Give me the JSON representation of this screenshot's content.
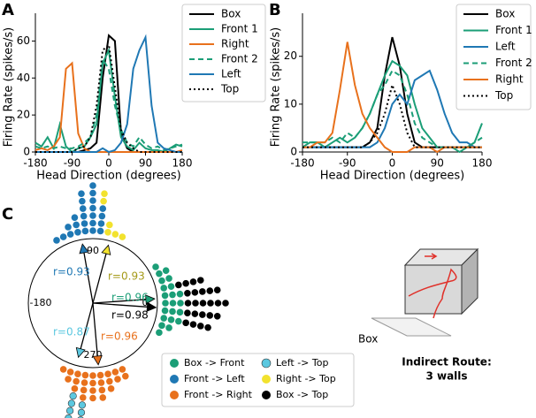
{
  "chart_data": [
    {
      "type": "line",
      "panel": "A",
      "xlabel": "Head Direction (degrees)",
      "ylabel": "Firing Rate (spikes/s)",
      "x": [
        -180,
        -165,
        -150,
        -135,
        -120,
        -105,
        -90,
        -75,
        -60,
        -45,
        -30,
        -15,
        0,
        15,
        30,
        45,
        60,
        75,
        90,
        105,
        120,
        135,
        150,
        165,
        180
      ],
      "xlim": [
        -180,
        180
      ],
      "xticks": [
        -180,
        -90,
        0,
        90,
        180
      ],
      "ylim": [
        0,
        75
      ],
      "yticks": [
        0,
        20,
        40,
        60
      ],
      "legend": "upper right",
      "series": [
        {
          "name": "Box",
          "color": "#000000",
          "dash": "solid",
          "values": [
            0,
            0,
            0,
            0,
            0,
            0,
            0,
            0,
            1,
            2,
            5,
            40,
            63,
            60,
            10,
            2,
            0,
            0,
            0,
            0,
            0,
            0,
            0,
            0,
            0
          ]
        },
        {
          "name": "Front 1",
          "color": "#1b9e77",
          "dash": "solid",
          "values": [
            5,
            3,
            8,
            2,
            15,
            3,
            0,
            2,
            3,
            8,
            15,
            48,
            55,
            30,
            8,
            3,
            1,
            5,
            2,
            1,
            1,
            0,
            2,
            4,
            3
          ]
        },
        {
          "name": "Right",
          "color": "#e8711c",
          "dash": "solid",
          "values": [
            1,
            2,
            1,
            3,
            8,
            45,
            48,
            10,
            2,
            0,
            0,
            0,
            0,
            0,
            0,
            0,
            0,
            0,
            0,
            0,
            0,
            0,
            0,
            0,
            1
          ]
        },
        {
          "name": "Front 2",
          "color": "#1b9e77",
          "dash": "dashed",
          "values": [
            3,
            2,
            3,
            2,
            3,
            2,
            2,
            3,
            5,
            8,
            20,
            50,
            45,
            25,
            12,
            5,
            3,
            8,
            4,
            2,
            3,
            1,
            2,
            3,
            4
          ]
        },
        {
          "name": "Left",
          "color": "#1f78b4",
          "dash": "solid",
          "values": [
            0,
            0,
            0,
            0,
            0,
            0,
            0,
            0,
            0,
            0,
            0,
            2,
            0,
            1,
            5,
            15,
            45,
            55,
            62,
            25,
            5,
            2,
            1,
            0,
            0
          ]
        },
        {
          "name": "Top",
          "color": "#000000",
          "dash": "dotted",
          "values": [
            0,
            0,
            0,
            0,
            0,
            0,
            0,
            2,
            3,
            8,
            25,
            55,
            58,
            35,
            12,
            5,
            2,
            0,
            0,
            0,
            0,
            0,
            0,
            0,
            0
          ]
        }
      ]
    },
    {
      "type": "line",
      "panel": "B",
      "xlabel": "Head Direction (degrees)",
      "ylabel": "Firing Rate (spikes/s)",
      "x": [
        -180,
        -165,
        -150,
        -135,
        -120,
        -105,
        -90,
        -75,
        -60,
        -45,
        -30,
        -15,
        0,
        15,
        30,
        45,
        60,
        75,
        90,
        105,
        120,
        135,
        150,
        165,
        180
      ],
      "xlim": [
        -180,
        180
      ],
      "xticks": [
        -180,
        -90,
        0,
        90,
        180
      ],
      "ylim": [
        0,
        29
      ],
      "yticks": [
        0,
        10,
        20
      ],
      "legend": "upper right",
      "series": [
        {
          "name": "Box",
          "color": "#000000",
          "dash": "solid",
          "values": [
            1,
            1,
            1,
            1,
            1,
            1,
            1,
            1,
            1,
            2,
            5,
            16,
            24,
            18,
            8,
            2,
            1,
            1,
            1,
            1,
            1,
            1,
            1,
            1,
            1
          ]
        },
        {
          "name": "Front 1",
          "color": "#1b9e77",
          "dash": "solid",
          "values": [
            1,
            2,
            2,
            1,
            2,
            3,
            2,
            3,
            5,
            8,
            12,
            16,
            19,
            18,
            16,
            10,
            5,
            3,
            1,
            1,
            1,
            0,
            1,
            2,
            6
          ]
        },
        {
          "name": "Left",
          "color": "#1f78b4",
          "dash": "solid",
          "values": [
            1,
            1,
            1,
            1,
            1,
            1,
            1,
            1,
            1,
            1,
            2,
            5,
            10,
            12,
            10,
            15,
            16,
            17,
            13,
            8,
            4,
            2,
            2,
            1,
            1
          ]
        },
        {
          "name": "Front 2",
          "color": "#1b9e77",
          "dash": "dashed",
          "values": [
            2,
            2,
            2,
            2,
            3,
            2,
            4,
            3,
            5,
            8,
            12,
            14,
            17,
            16,
            12,
            6,
            3,
            2,
            1,
            1,
            1,
            1,
            1,
            2,
            3
          ]
        },
        {
          "name": "Right",
          "color": "#e8711c",
          "dash": "solid",
          "values": [
            1,
            1,
            2,
            2,
            4,
            13,
            23,
            14,
            8,
            5,
            3,
            1,
            0,
            0,
            0,
            1,
            1,
            1,
            0,
            1,
            1,
            1,
            1,
            1,
            1
          ]
        },
        {
          "name": "Top",
          "color": "#000000",
          "dash": "dotted",
          "values": [
            1,
            1,
            1,
            1,
            1,
            1,
            1,
            1,
            1,
            2,
            4,
            8,
            14,
            10,
            4,
            1,
            1,
            1,
            1,
            1,
            1,
            1,
            1,
            1,
            1
          ]
        }
      ]
    },
    {
      "type": "polar-dot",
      "panel": "C",
      "thetaticks": [
        90,
        0,
        -180,
        270
      ],
      "series": [
        {
          "name": "Box -> Front",
          "color": "#1b9e77",
          "angles": [
            30,
            24,
            18,
            12,
            6,
            0,
            -6,
            -12,
            -18,
            -24
          ],
          "counts": [
            1,
            2,
            2,
            2,
            3,
            3,
            3,
            3,
            2,
            1
          ],
          "angle": 4,
          "r": 0.96,
          "r_label": "r=0.96"
        },
        {
          "name": "Front -> Left",
          "color": "#1f78b4",
          "angles": [
            120,
            114,
            108,
            102,
            96,
            90,
            84
          ],
          "counts": [
            1,
            1,
            2,
            3,
            6,
            7,
            4
          ],
          "angle": 100,
          "r": 0.93,
          "r_label": "r=0.93"
        },
        {
          "name": "Front -> Right",
          "color": "#e8711c",
          "angles": [
            246,
            252,
            258,
            264,
            270,
            276,
            282,
            288,
            294
          ],
          "counts": [
            1,
            2,
            3,
            4,
            4,
            4,
            3,
            2,
            2
          ],
          "angle": 275,
          "r": 0.96,
          "r_label": "r=0.96"
        },
        {
          "name": "Left -> Top",
          "color": "#5bc8e0",
          "angles": [
            258,
            264
          ],
          "counts": [
            4,
            3
          ],
          "angle": 255,
          "r": 0.87,
          "r_label": "r=0.87"
        },
        {
          "name": "Right -> Top",
          "color": "#f2e22e",
          "label_color": "#a59a18",
          "angles": [
            84,
            78,
            72,
            66
          ],
          "counts": [
            2,
            2,
            1,
            1
          ],
          "angle": 75,
          "r": 0.93,
          "r_label": "r=0.93"
        },
        {
          "name": "Box -> Top",
          "color": "#000000",
          "angles": [
            12,
            6,
            0,
            -6,
            -12
          ],
          "counts": [
            4,
            5,
            6,
            5,
            4
          ],
          "angle": -4,
          "r": 0.98,
          "r_label": "r=0.98"
        }
      ]
    }
  ],
  "diagram": {
    "label": "Box",
    "caption": [
      "Indirect Route:",
      "3 walls"
    ]
  }
}
